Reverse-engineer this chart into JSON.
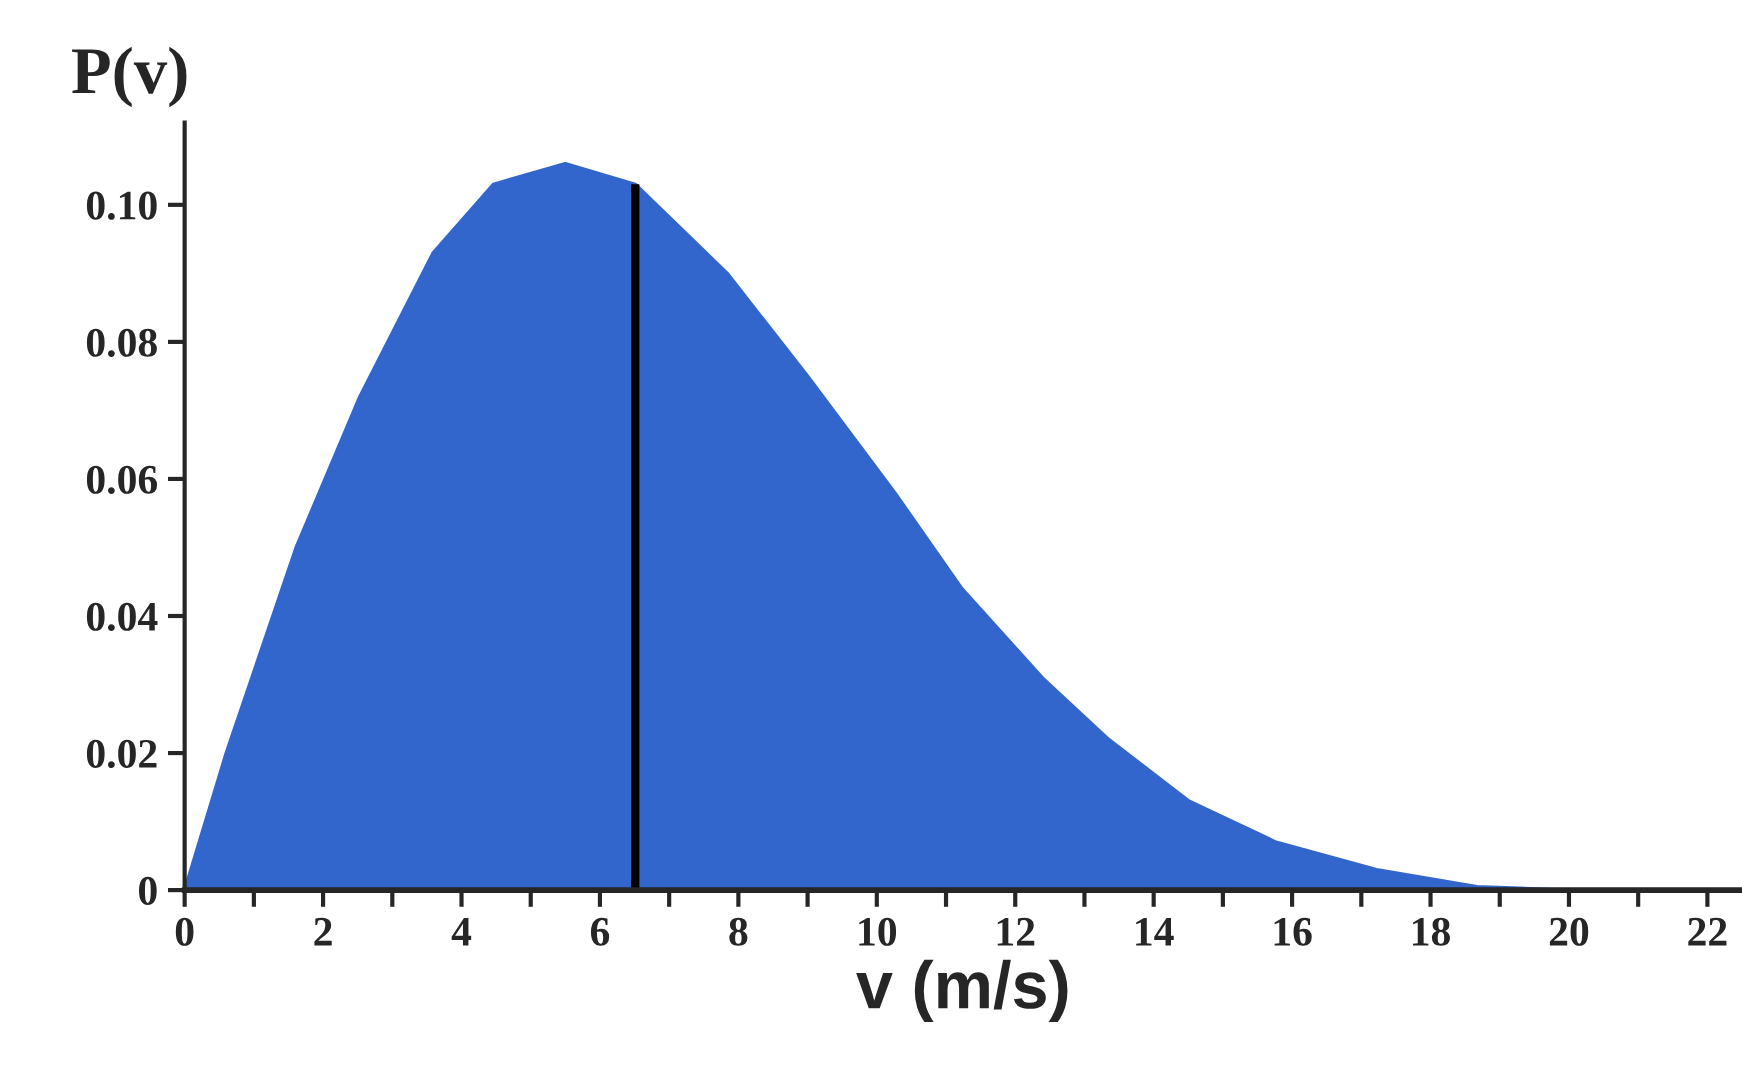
{
  "chart_data": {
    "type": "area",
    "xlabel": "v (m/s)",
    "ylabel": "P(v)",
    "x": [
      0,
      0.6,
      1.61,
      2.53,
      3.59,
      4.46,
      5.5,
      6.51,
      7.84,
      9.0,
      10.26,
      11.23,
      12.39,
      13.35,
      14.51,
      15.77,
      17.22,
      18.67,
      20.0,
      22.5
    ],
    "series": [
      {
        "color": "#3366cc",
        "values": [
          0,
          0.02,
          0.05,
          0.072,
          0.093,
          0.103,
          0.106,
          0.103,
          0.09,
          0.075,
          0.058,
          0.044,
          0.031,
          0.022,
          0.013,
          0.007,
          0.003,
          0.0005,
          0,
          0
        ]
      }
    ],
    "ref_lines": [
      {
        "axis": "x",
        "value": 6.51,
        "color": "#000000"
      }
    ],
    "xlim": [
      0,
      22.5
    ],
    "ylim": [
      0,
      0.112
    ],
    "xticks": [
      0,
      {
        "value": 1,
        "label": null
      },
      2,
      {
        "value": 3,
        "label": null
      },
      4,
      {
        "value": 5,
        "label": null
      },
      6,
      {
        "value": 7,
        "label": null
      },
      8,
      {
        "value": 9,
        "label": null
      },
      10,
      {
        "value": 11,
        "label": null
      },
      12,
      {
        "value": 13,
        "label": null
      },
      14,
      {
        "value": 15,
        "label": null
      },
      16,
      {
        "value": 17,
        "label": null
      },
      18,
      {
        "value": 19,
        "label": null
      },
      20,
      {
        "value": 21,
        "label": null
      },
      22
    ],
    "yticks": [
      0,
      0.02,
      0.04,
      0.06,
      0.08,
      {
        "value": 0.1,
        "label": "0.10"
      }
    ],
    "grid": false,
    "legend": false
  }
}
